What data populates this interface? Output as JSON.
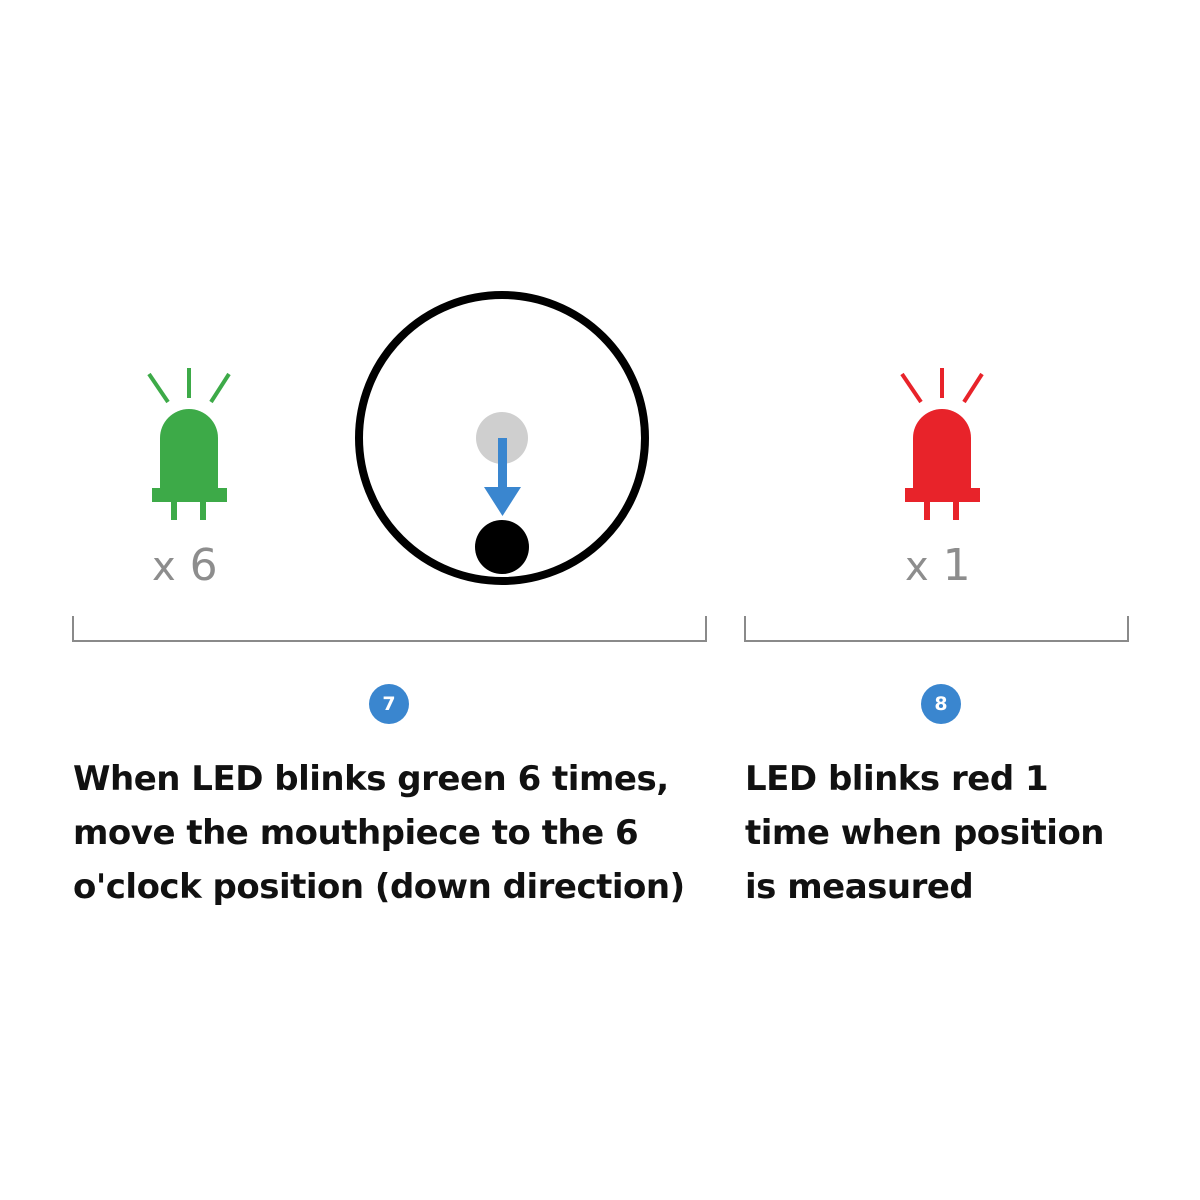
{
  "colors": {
    "green_led": "#3daa48",
    "red_led": "#e8232a",
    "arrow": "#3a86cf",
    "start_dot": "#cfcfcf",
    "end_dot": "#000000",
    "badge": "#3a86cf",
    "count_text": "#8d8d8d"
  },
  "step7": {
    "led_icon": "green-led-icon",
    "count_x": "x",
    "count_n": "6",
    "badge": "7",
    "lines": [
      "When LED blinks green 6 times,",
      "move the mouthpiece to the 6",
      "o'clock position (down direction)"
    ]
  },
  "step8": {
    "led_icon": "red-led-icon",
    "count_x": "x",
    "count_n": "1",
    "badge": "8",
    "lines": [
      "LED blinks red 1",
      "time when position",
      "is measured"
    ]
  },
  "dial": {
    "icon": "mouthpiece-position-dial",
    "direction": "down"
  }
}
